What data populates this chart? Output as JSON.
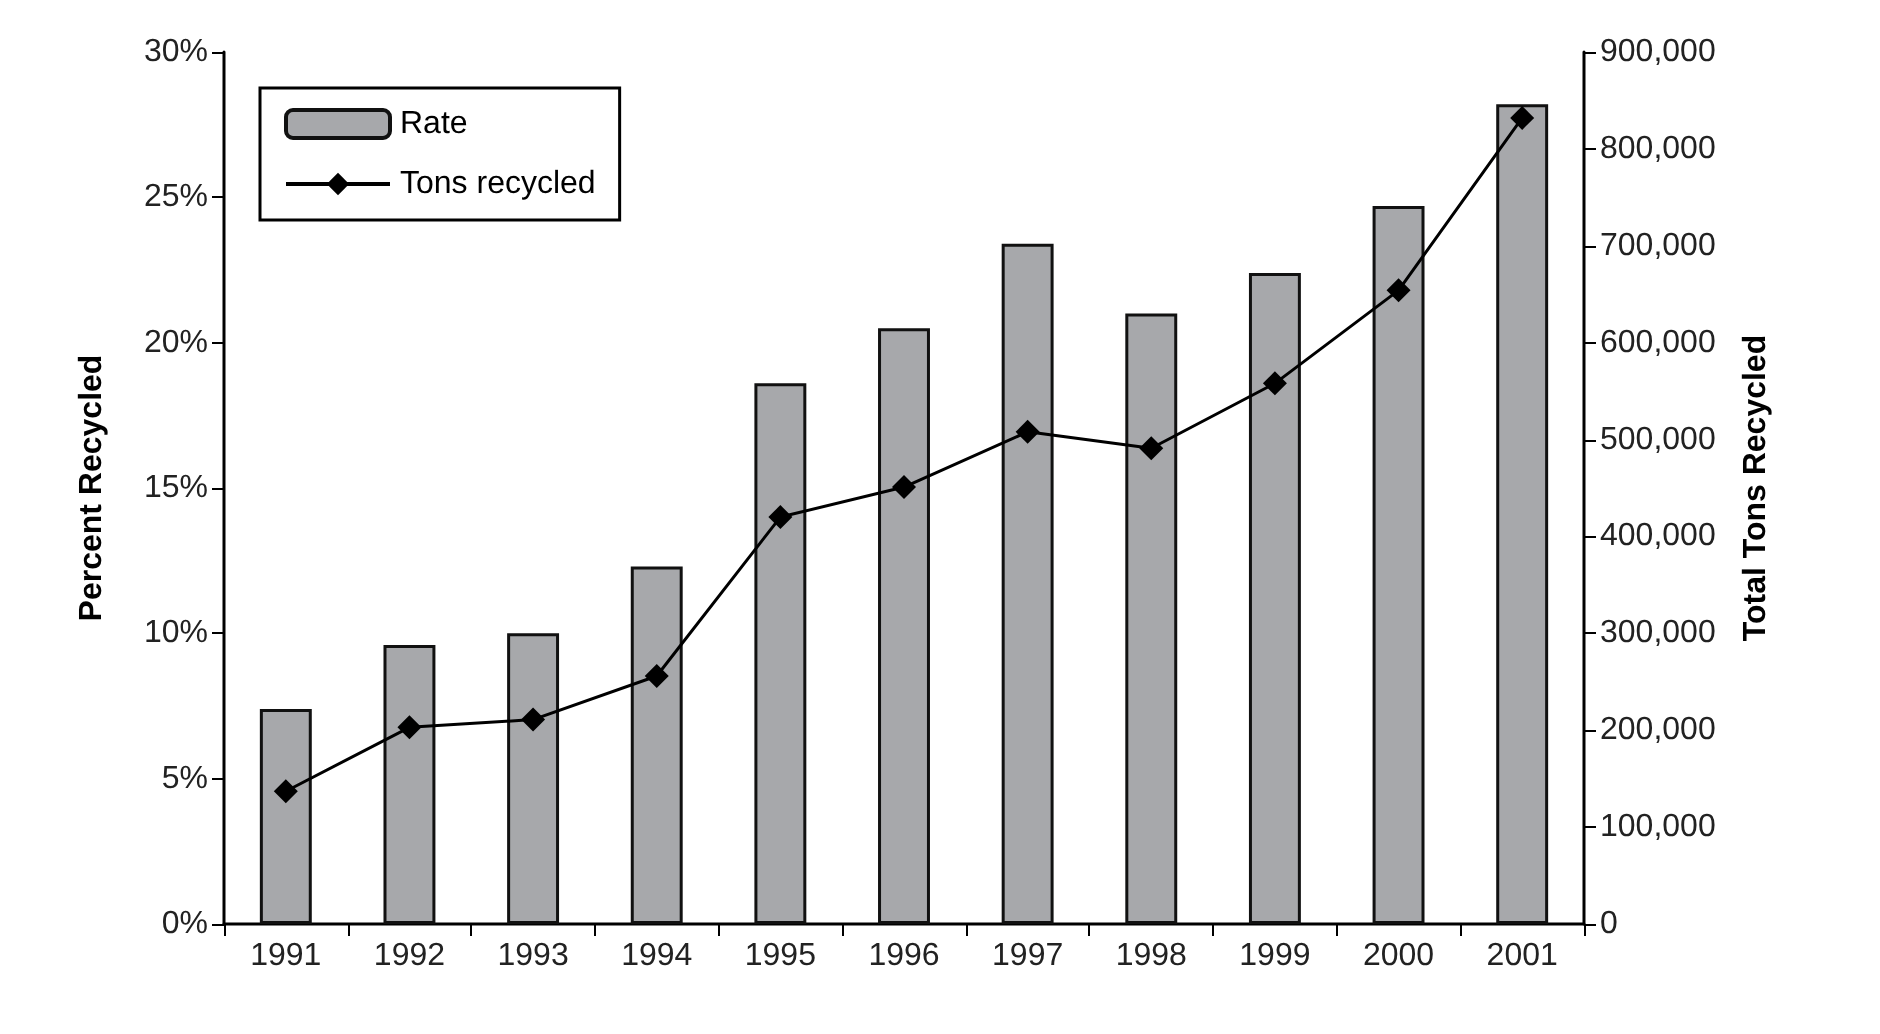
{
  "chart_data": {
    "type": "bar",
    "categories": [
      "1991",
      "1992",
      "1993",
      "1994",
      "1995",
      "1996",
      "1997",
      "1998",
      "1999",
      "2000",
      "2001"
    ],
    "series": [
      {
        "name": "Rate",
        "color": "#a7a8ab",
        "values": [
          7.4,
          9.6,
          10.0,
          12.3,
          18.6,
          20.5,
          23.4,
          21.0,
          22.4,
          24.7,
          28.2
        ]
      },
      {
        "name": "Tons recycled",
        "type": "line",
        "axis": "y2",
        "color": "#000000",
        "marker": "diamond",
        "line_style": "solid",
        "values": [
          137000,
          203000,
          211000,
          256000,
          420000,
          451000,
          508000,
          491000,
          558000,
          654000,
          832000
        ]
      }
    ],
    "ylabel": "Percent Recycled",
    "y2label": "Total Tons Recycled",
    "ylim": [
      0,
      30
    ],
    "yticks": [
      {
        "value": 0,
        "label": "0%"
      },
      {
        "value": 5,
        "label": "5%"
      },
      {
        "value": 10,
        "label": "10%"
      },
      {
        "value": 15,
        "label": "15%"
      },
      {
        "value": 20,
        "label": "20%"
      },
      {
        "value": 25,
        "label": "25%"
      },
      {
        "value": 30,
        "label": "30%"
      }
    ],
    "y2lim": [
      0,
      900000
    ],
    "y2ticks": [
      {
        "value": 0,
        "label": "0"
      },
      {
        "value": 100000,
        "label": "100,000"
      },
      {
        "value": 200000,
        "label": "200,000"
      },
      {
        "value": 300000,
        "label": "300,000"
      },
      {
        "value": 400000,
        "label": "400,000"
      },
      {
        "value": 500000,
        "label": "500,000"
      },
      {
        "value": 600000,
        "label": "600,000"
      },
      {
        "value": 700000,
        "label": "700,000"
      },
      {
        "value": 800000,
        "label": "800,000"
      },
      {
        "value": 900000,
        "label": "900,000"
      }
    ],
    "grid": false,
    "legend": "top left"
  }
}
